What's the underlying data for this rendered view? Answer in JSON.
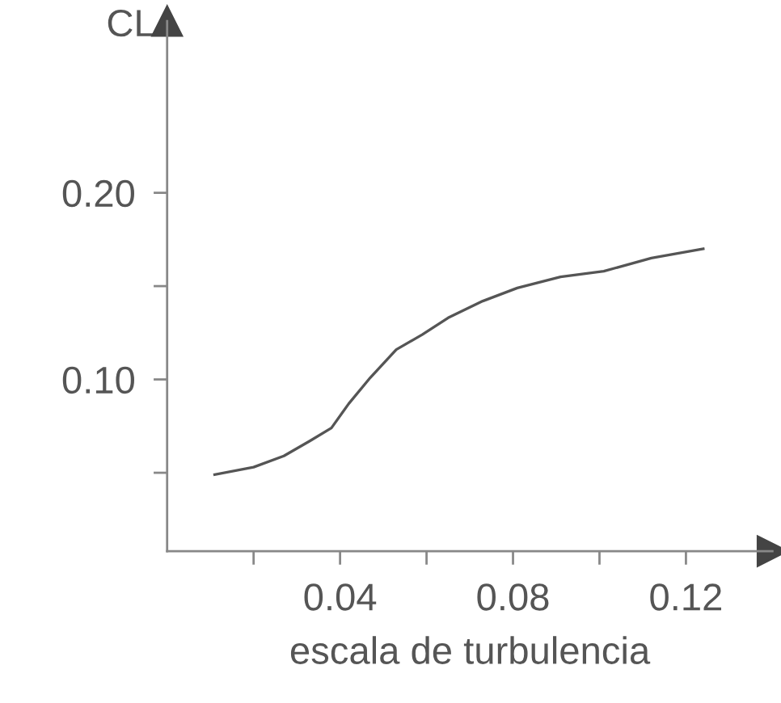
{
  "chart_data": {
    "type": "line",
    "xlabel": "escala de turbulencia",
    "ylabel": "CL",
    "x": [
      0.011,
      0.02,
      0.027,
      0.033,
      0.038,
      0.042,
      0.047,
      0.053,
      0.059,
      0.065,
      0.073,
      0.081,
      0.091,
      0.101,
      0.112,
      0.124
    ],
    "series": [
      {
        "color": "#555555",
        "values": [
          0.049,
          0.053,
          0.059,
          0.067,
          0.074,
          0.087,
          0.101,
          0.116,
          0.124,
          0.133,
          0.142,
          0.149,
          0.155,
          0.158,
          0.165,
          0.17
        ]
      }
    ],
    "xlim": [
      0,
      0.14
    ],
    "ylim": [
      0.008,
      0.292
    ],
    "xticks": [
      {
        "value": 0.02,
        "label": null
      },
      0.04,
      {
        "value": 0.06,
        "label": null
      },
      0.08,
      {
        "value": 0.1,
        "label": null
      },
      0.12
    ],
    "yticks": [
      {
        "value": 0.05,
        "label": null
      },
      {
        "value": 0.1,
        "label": "0.10"
      },
      {
        "value": 0.15,
        "label": null
      },
      {
        "value": 0.2,
        "label": "0.20"
      }
    ],
    "grid": false,
    "legend": false,
    "marker": "none",
    "line_style": "solid"
  }
}
